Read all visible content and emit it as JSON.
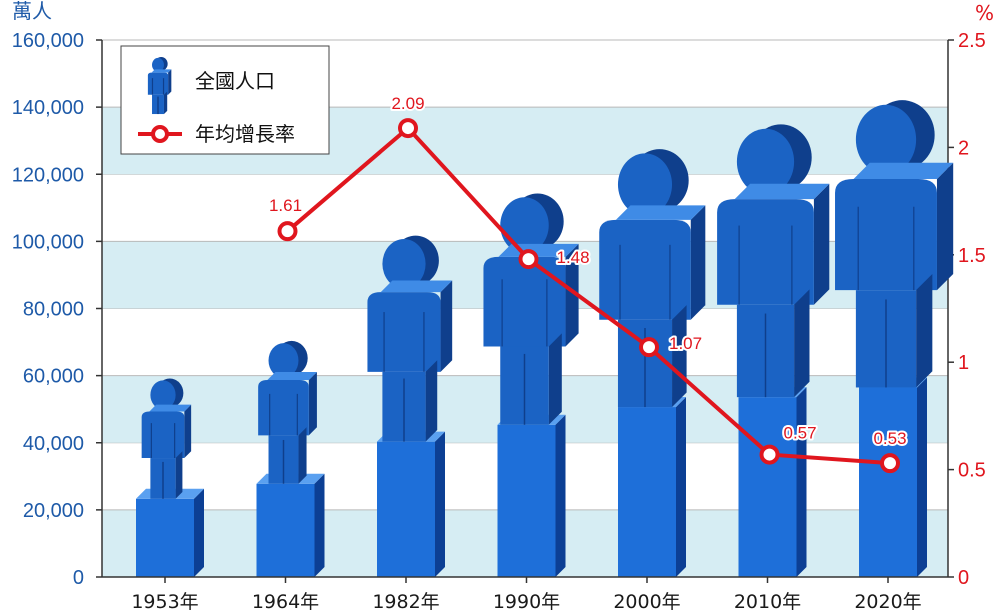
{
  "chart_data": {
    "type": "bar",
    "categories": [
      "1953年",
      "1964年",
      "1982年",
      "1990年",
      "2000年",
      "2010年",
      "2020年"
    ],
    "series": [
      {
        "name": "全國人口",
        "axis": "left",
        "type": "bar",
        "values": [
          58260,
          69458,
          100818,
          113368,
          126583,
          133972,
          141178
        ],
        "color": "#1e6fd9"
      },
      {
        "name": "年均增長率",
        "axis": "right",
        "type": "line",
        "values": [
          null,
          1.61,
          2.09,
          1.48,
          1.07,
          0.57,
          0.53
        ],
        "labels": [
          "",
          "1.61",
          "2.09",
          "1.48",
          "1.07",
          "0.57",
          "0.53"
        ],
        "color": "#e0161e"
      }
    ],
    "y_left": {
      "unit": "萬人",
      "ylim": [
        0,
        160000
      ],
      "ticks": [
        "0",
        "20,000",
        "40,000",
        "60,000",
        "80,000",
        "100,000",
        "120,000",
        "140,000",
        "160,000"
      ]
    },
    "y_right": {
      "unit": "%",
      "ylim": [
        0,
        2.5
      ],
      "ticks": [
        "0",
        "0.5",
        "1",
        "1.5",
        "2",
        "2.5"
      ]
    },
    "grid": "horizontal bands",
    "legend_position": "top-left",
    "colors": {
      "band": "#d6edf3",
      "bar": "#1e6fd9",
      "line": "#e0161e"
    }
  }
}
